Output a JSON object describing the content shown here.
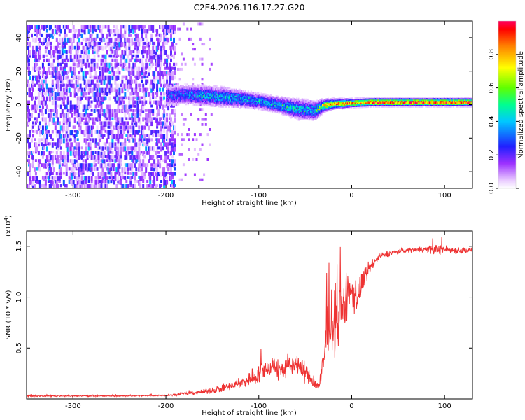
{
  "figure": {
    "title": "C2E4.2026.116.17.27.G20"
  },
  "chart_data": [
    {
      "id": "spectrogram",
      "type": "heatmap",
      "title": "C2E4.2026.116.17.27.G20",
      "xlabel": "Height of straight line (km)",
      "ylabel": "Frequency (Hz)",
      "xlim": [
        -350,
        130
      ],
      "ylim": [
        -50,
        50
      ],
      "xticks": [
        -300,
        -200,
        -100,
        0,
        100
      ],
      "yticks": [
        -40,
        -20,
        0,
        20,
        40
      ],
      "colorbar": {
        "label": "Normalized spectral amplitude",
        "range": [
          0,
          1
        ],
        "ticks": [
          0.0,
          0.2,
          0.4,
          0.6,
          0.8
        ],
        "tick_labels": [
          "0.0",
          "0.2",
          "0.4",
          "0.6",
          "0.8"
        ]
      },
      "noise_region": {
        "x_range": [
          -350,
          -190
        ],
        "amplitude": 0.15
      },
      "signal_track": {
        "x": [
          -200,
          -180,
          -160,
          -140,
          -120,
          -100,
          -80,
          -60,
          -40,
          -30,
          -20,
          0,
          20,
          50,
          80,
          100,
          130
        ],
        "center_hz": [
          6,
          6.5,
          6,
          5,
          4,
          2.5,
          0.5,
          -2,
          -3,
          0,
          1,
          1.5,
          2,
          2,
          2,
          2,
          2
        ],
        "half_width_hz": [
          5,
          5,
          5,
          5,
          4.5,
          4,
          4,
          5,
          5,
          3,
          2.5,
          2,
          2,
          2,
          2,
          2,
          2
        ],
        "peak_amplitude": [
          0.25,
          0.3,
          0.35,
          0.35,
          0.35,
          0.35,
          0.4,
          0.4,
          0.35,
          0.7,
          0.8,
          0.85,
          0.9,
          0.9,
          0.9,
          0.9,
          0.9
        ]
      }
    },
    {
      "id": "snr",
      "type": "line",
      "xlabel": "Height of straight line (km)",
      "ylabel": "SNR (10 * v/v)",
      "yscale_label": "(x10",
      "yscale_exp": "4",
      "yscale_close": ")",
      "xlim": [
        -350,
        130
      ],
      "ylim": [
        0,
        1.65
      ],
      "xticks": [
        -300,
        -200,
        -100,
        0,
        100
      ],
      "yticks": [
        0.5,
        1.0,
        1.5
      ],
      "ytick_labels": [
        "0.5",
        "1.0",
        "1.5"
      ],
      "series": [
        {
          "name": "SNR",
          "color": "#ee3333",
          "x": [
            -350,
            -300,
            -250,
            -200,
            -180,
            -160,
            -140,
            -120,
            -110,
            -100,
            -90,
            -85,
            -80,
            -70,
            -60,
            -55,
            -50,
            -45,
            -40,
            -35,
            -30,
            -28,
            -25,
            -20,
            -15,
            -10,
            -5,
            0,
            5,
            10,
            15,
            20,
            25,
            30,
            40,
            50,
            60,
            70,
            80,
            90,
            100,
            110,
            120,
            130
          ],
          "y": [
            0.03,
            0.03,
            0.03,
            0.035,
            0.05,
            0.07,
            0.1,
            0.15,
            0.2,
            0.25,
            0.3,
            0.35,
            0.28,
            0.3,
            0.35,
            0.3,
            0.28,
            0.2,
            0.15,
            0.12,
            0.35,
            0.6,
            0.7,
            0.8,
            0.75,
            0.9,
            1.0,
            1.05,
            1.0,
            1.1,
            1.2,
            1.3,
            1.35,
            1.4,
            1.43,
            1.45,
            1.46,
            1.47,
            1.47,
            1.47,
            1.47,
            1.46,
            1.46,
            1.46
          ],
          "noise": [
            0.01,
            0.01,
            0.01,
            0.01,
            0.02,
            0.03,
            0.05,
            0.08,
            0.12,
            0.15,
            0.15,
            0.15,
            0.15,
            0.15,
            0.15,
            0.15,
            0.15,
            0.1,
            0.08,
            0.08,
            0.3,
            0.4,
            0.45,
            0.45,
            0.4,
            0.35,
            0.35,
            0.3,
            0.3,
            0.2,
            0.15,
            0.1,
            0.06,
            0.05,
            0.04,
            0.03,
            0.03,
            0.04,
            0.05,
            0.08,
            0.06,
            0.05,
            0.05,
            0.03
          ]
        }
      ]
    }
  ]
}
